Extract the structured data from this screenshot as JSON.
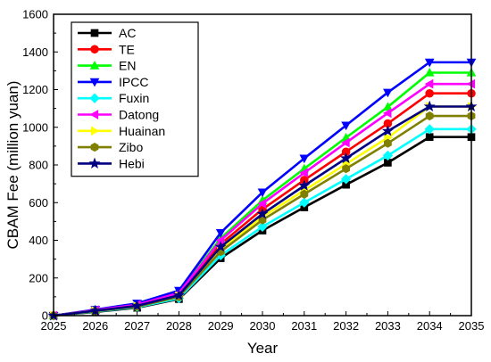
{
  "chart_data": {
    "type": "line",
    "xlabel": "Year",
    "ylabel": "CBAM Fee (million yuan)",
    "x": [
      2025,
      2026,
      2027,
      2028,
      2029,
      2030,
      2031,
      2032,
      2033,
      2034,
      2035
    ],
    "xlim": [
      2025,
      2035
    ],
    "ylim": [
      0,
      1600
    ],
    "yticks": [
      0,
      200,
      400,
      600,
      800,
      1000,
      1200,
      1400,
      1600
    ],
    "grid": false,
    "legend": "top-left",
    "series": [
      {
        "name": "AC",
        "color": "#000000",
        "marker": "square",
        "values": [
          0,
          20,
          42,
          88,
          305,
          452,
          575,
          695,
          812,
          948,
          948
        ]
      },
      {
        "name": "TE",
        "color": "#ff0000",
        "marker": "circle",
        "values": [
          0,
          28,
          55,
          115,
          380,
          565,
          720,
          870,
          1020,
          1180,
          1180
        ]
      },
      {
        "name": "EN",
        "color": "#00ff00",
        "marker": "triangle-up",
        "values": [
          0,
          30,
          60,
          125,
          410,
          612,
          780,
          945,
          1108,
          1290,
          1290
        ]
      },
      {
        "name": "IPCC",
        "color": "#0000ff",
        "marker": "triangle-down",
        "values": [
          0,
          32,
          65,
          133,
          440,
          655,
          835,
          1010,
          1185,
          1345,
          1345
        ]
      },
      {
        "name": "Fuxin",
        "color": "#00ffff",
        "marker": "diamond",
        "values": [
          0,
          22,
          45,
          92,
          320,
          472,
          600,
          725,
          850,
          990,
          990
        ]
      },
      {
        "name": "Datong",
        "color": "#ff00ff",
        "marker": "triangle-left",
        "values": [
          0,
          29,
          58,
          120,
          400,
          595,
          758,
          918,
          1075,
          1230,
          1230
        ]
      },
      {
        "name": "Huainan",
        "color": "#ffff00",
        "marker": "triangle-right",
        "values": [
          0,
          25,
          50,
          104,
          352,
          525,
          665,
          805,
          945,
          1110,
          1110
        ]
      },
      {
        "name": "Zibo",
        "color": "#808000",
        "marker": "hexagon",
        "values": [
          0,
          24,
          48,
          100,
          340,
          508,
          645,
          780,
          915,
          1060,
          1060
        ]
      },
      {
        "name": "Hebi",
        "color": "#000080",
        "marker": "star",
        "values": [
          0,
          26,
          52,
          108,
          365,
          540,
          690,
          835,
          980,
          1110,
          1110
        ]
      }
    ]
  }
}
